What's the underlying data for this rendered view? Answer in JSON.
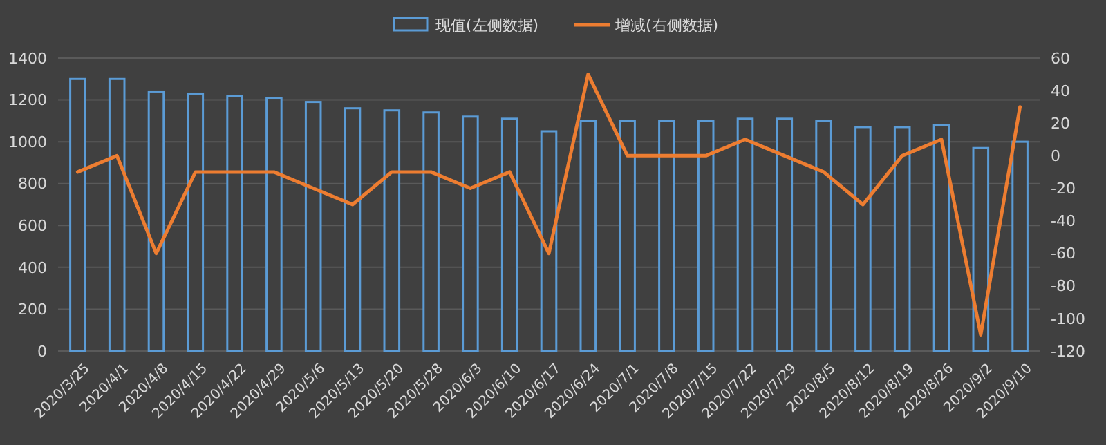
{
  "chart_data": {
    "type": "bar",
    "categories": [
      "2020/3/25",
      "2020/4/1",
      "2020/4/8",
      "2020/4/15",
      "2020/4/22",
      "2020/4/29",
      "2020/5/6",
      "2020/5/13",
      "2020/5/20",
      "2020/5/28",
      "2020/6/3",
      "2020/6/10",
      "2020/6/17",
      "2020/6/24",
      "2020/7/1",
      "2020/7/8",
      "2020/7/15",
      "2020/7/22",
      "2020/7/29",
      "2020/8/5",
      "2020/8/12",
      "2020/8/19",
      "2020/8/26",
      "2020/9/2",
      "2020/9/10"
    ],
    "series": [
      {
        "name": "现值(左侧数据)",
        "color": "#5b9bd5",
        "values": [
          1300,
          1300,
          1240,
          1230,
          1220,
          1210,
          1190,
          1160,
          1150,
          1140,
          1120,
          1110,
          1050,
          1100,
          1100,
          1100,
          1100,
          1110,
          1110,
          1100,
          1070,
          1070,
          1080,
          970,
          1000
        ]
      },
      {
        "name": "增减(右侧数据)",
        "type": "line",
        "axis": "y2",
        "color": "#ed7d31",
        "values": [
          -10,
          0,
          -60,
          -10,
          -10,
          -10,
          -20,
          -30,
          -10,
          -10,
          -20,
          -10,
          -60,
          50,
          0,
          0,
          0,
          10,
          0,
          -10,
          -30,
          0,
          10,
          -110,
          30
        ]
      }
    ],
    "ylim": [
      0,
      1400
    ],
    "yticks": [
      0,
      200,
      400,
      600,
      800,
      1000,
      1200,
      1400
    ],
    "y2lim": [
      -120,
      60
    ],
    "y2ticks": [
      -120,
      -100,
      -80,
      -60,
      -40,
      -20,
      0,
      20,
      40,
      60
    ],
    "grid": "y",
    "legend": "top",
    "marker": "none",
    "line_style": "solid"
  }
}
